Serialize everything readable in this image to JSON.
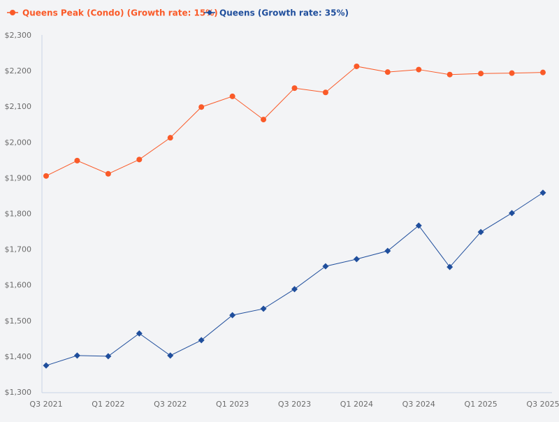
{
  "chart_data": {
    "type": "line",
    "title": "",
    "xlabel": "",
    "ylabel": "",
    "categories": [
      "Q3 2021",
      "Q4 2021",
      "Q1 2022",
      "Q2 2022",
      "Q3 2022",
      "Q4 2022",
      "Q1 2023",
      "Q2 2023",
      "Q3 2023",
      "Q4 2023",
      "Q1 2024",
      "Q2 2024",
      "Q3 2024",
      "Q4 2024",
      "Q1 2025",
      "Q2 2025",
      "Q3 2025"
    ],
    "x_tick_labels": [
      "Q3 2021",
      "Q1 2022",
      "Q3 2022",
      "Q1 2023",
      "Q3 2023",
      "Q1 2024",
      "Q3 2024",
      "Q1 2025",
      "Q3 2025"
    ],
    "y_tick_labels": [
      "$1,300",
      "$1,400",
      "$1,500",
      "$1,600",
      "$1,700",
      "$1,800",
      "$1,900",
      "$2,000",
      "$2,100",
      "$2,200",
      "$2,300"
    ],
    "ylim": [
      1300,
      2300
    ],
    "grid": false,
    "legend_position": "top-left",
    "series": [
      {
        "name": "Queens Peak (Condo) (Growth rate: 15%)",
        "color": "#fa5a28",
        "marker": "circle",
        "values": [
          1905,
          1948,
          1911,
          1951,
          2012,
          2098,
          2128,
          2063,
          2151,
          2139,
          2212,
          2196,
          2203,
          2189,
          2192,
          2193,
          2195
        ]
      },
      {
        "name": "Queens (Growth rate: 35%)",
        "color": "#1f4e9c",
        "marker": "diamond",
        "values": [
          1374,
          1402,
          1400,
          1464,
          1402,
          1445,
          1515,
          1533,
          1588,
          1652,
          1672,
          1695,
          1766,
          1650,
          1748,
          1801,
          1858
        ]
      }
    ]
  }
}
